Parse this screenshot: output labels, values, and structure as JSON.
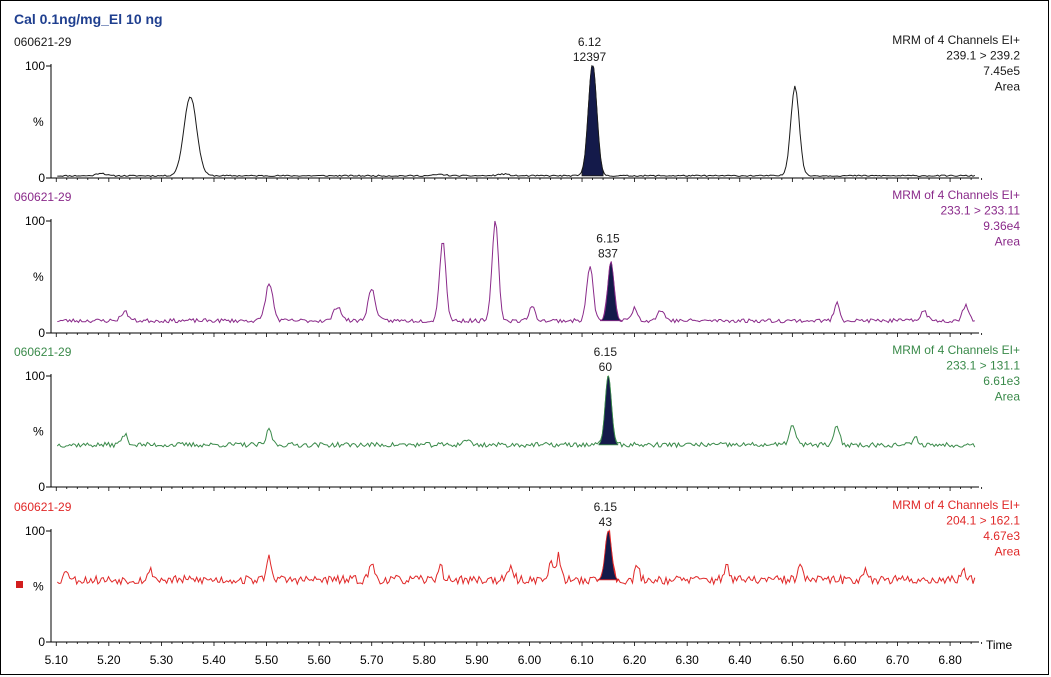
{
  "header": {
    "title": "Cal 0.1ng/mg_El 10 ng"
  },
  "colors": {
    "title": "#1f3f8f",
    "peak_fill": "#141a4a",
    "axis": "#000000",
    "marker": "#d21e1e"
  },
  "chart_data": {
    "type": "line",
    "x_axis": {
      "label": "Time",
      "ticks": [
        "5.10",
        "5.20",
        "5.30",
        "5.40",
        "5.50",
        "5.60",
        "5.70",
        "5.80",
        "5.90",
        "6.00",
        "6.10",
        "6.20",
        "6.30",
        "6.40",
        "6.50",
        "6.60",
        "6.70",
        "6.80"
      ],
      "range": [
        5.09,
        6.855
      ]
    },
    "y_axis": {
      "label": "%",
      "range": [
        0,
        100
      ],
      "ticks": [
        "0",
        "100"
      ]
    },
    "panels": [
      {
        "sample": "060621-29",
        "color": "#1a1a1a",
        "info": [
          "MRM of 4 Channels EI+",
          "239.1 > 239.2",
          "7.45e5",
          "Area"
        ],
        "baseline": 2,
        "noise": 0.6,
        "noise_seed": 11,
        "peaks": [
          [
            5.185,
            2.5,
            0.008
          ],
          [
            5.355,
            71,
            0.012
          ],
          [
            6.12,
            100,
            0.008
          ],
          [
            6.505,
            80,
            0.008
          ],
          [
            5.95,
            1.5,
            0.01
          ],
          [
            5.83,
            1.2,
            0.01
          ]
        ],
        "filled_peak": {
          "rt": 6.12,
          "width": 0.02
        },
        "label_rt": "6.12",
        "label_area": "12397"
      },
      {
        "sample": "060621-29",
        "color": "#8a2a8a",
        "info": [
          "MRM of 4 Channels EI+",
          "233.1 > 233.11",
          "9.36e4",
          "Area"
        ],
        "baseline": 11,
        "noise": 1.8,
        "noise_seed": 23,
        "peaks": [
          [
            5.23,
            8,
            0.007
          ],
          [
            5.505,
            33,
            0.007
          ],
          [
            5.635,
            13,
            0.007
          ],
          [
            5.7,
            28,
            0.007
          ],
          [
            5.835,
            72,
            0.006
          ],
          [
            5.935,
            90,
            0.006
          ],
          [
            6.005,
            12,
            0.006
          ],
          [
            6.115,
            49,
            0.006
          ],
          [
            6.155,
            52,
            0.006
          ],
          [
            6.2,
            11,
            0.006
          ],
          [
            6.25,
            9,
            0.007
          ],
          [
            6.585,
            17,
            0.005
          ],
          [
            6.75,
            9,
            0.006
          ],
          [
            6.83,
            14,
            0.006
          ]
        ],
        "filled_peak": {
          "rt": 6.155,
          "width": 0.02
        },
        "label_rt": "6.15",
        "label_area": "837"
      },
      {
        "sample": "060621-29",
        "color": "#3a8a4a",
        "info": [
          "MRM of 4 Channels EI+",
          "233.1 > 131.1",
          "6.61e3",
          "Area"
        ],
        "baseline": 38,
        "noise": 2.2,
        "noise_seed": 37,
        "peaks": [
          [
            5.23,
            9,
            0.006
          ],
          [
            5.505,
            14,
            0.005
          ],
          [
            5.88,
            5,
            0.006
          ],
          [
            6.15,
            62,
            0.006
          ],
          [
            6.5,
            17,
            0.006
          ],
          [
            6.585,
            17,
            0.005
          ],
          [
            6.735,
            6,
            0.005
          ]
        ],
        "filled_peak": {
          "rt": 6.15,
          "width": 0.018
        },
        "label_rt": "6.15",
        "label_area": "60"
      },
      {
        "sample": "060621-29",
        "color": "#e02828",
        "info": [
          "MRM of 4 Channels EI+",
          "204.1 > 162.1",
          "4.67e3",
          "Area"
        ],
        "baseline": 56,
        "noise": 4.0,
        "noise_seed": 53,
        "peaks": [
          [
            5.12,
            10,
            0.004
          ],
          [
            5.28,
            8,
            0.005
          ],
          [
            5.505,
            20,
            0.005
          ],
          [
            5.7,
            14,
            0.005
          ],
          [
            5.83,
            12,
            0.005
          ],
          [
            5.965,
            10,
            0.005
          ],
          [
            6.04,
            18,
            0.004
          ],
          [
            6.055,
            22,
            0.004
          ],
          [
            6.15,
            44,
            0.006
          ],
          [
            6.205,
            12,
            0.004
          ],
          [
            6.375,
            16,
            0.004
          ],
          [
            6.515,
            12,
            0.005
          ],
          [
            6.64,
            10,
            0.005
          ],
          [
            6.825,
            10,
            0.004
          ]
        ],
        "filled_peak": {
          "rt": 6.15,
          "width": 0.02
        },
        "label_rt": "6.15",
        "label_area": "43"
      }
    ]
  }
}
